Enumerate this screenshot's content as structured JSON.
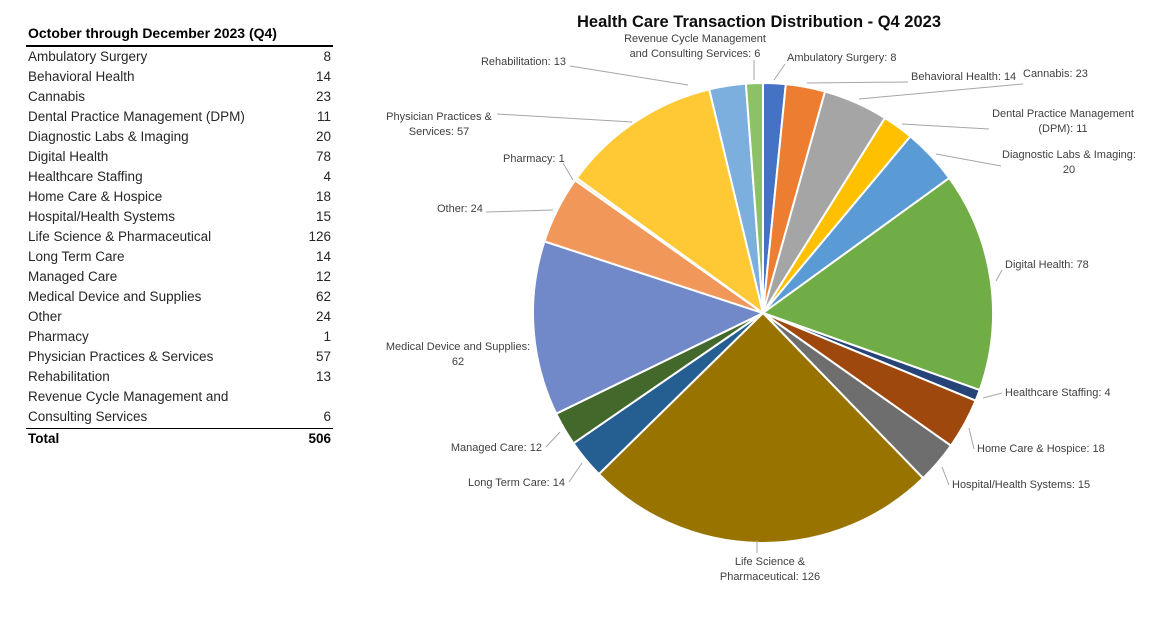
{
  "table": {
    "header": "October through December 2023 (Q4)",
    "rows": [
      {
        "label": "Ambulatory Surgery",
        "value": 8
      },
      {
        "label": "Behavioral Health",
        "value": 14
      },
      {
        "label": "Cannabis",
        "value": 23
      },
      {
        "label": "Dental Practice Management (DPM)",
        "value": 11
      },
      {
        "label": "Diagnostic Labs & Imaging",
        "value": 20
      },
      {
        "label": "Digital Health",
        "value": 78
      },
      {
        "label": "Healthcare Staffing",
        "value": 4
      },
      {
        "label": "Home Care & Hospice",
        "value": 18
      },
      {
        "label": "Hospital/Health Systems",
        "value": 15
      },
      {
        "label": "Life Science & Pharmaceutical",
        "value": 126
      },
      {
        "label": "Long Term Care",
        "value": 14
      },
      {
        "label": "Managed Care",
        "value": 12
      },
      {
        "label": "Medical Device and Supplies",
        "value": 62
      },
      {
        "label": "Other",
        "value": 24
      },
      {
        "label": "Pharmacy",
        "value": 1
      },
      {
        "label": "Physician Practices & Services",
        "value": 57
      },
      {
        "label": "Rehabilitation",
        "value": 13
      },
      {
        "label": "Revenue Cycle Management and Consulting Services",
        "value": 6
      }
    ],
    "total_label": "Total",
    "total_value": 506
  },
  "chart_data": {
    "type": "pie",
    "title": "Health Care Transaction Distribution - Q4 2023",
    "total": 506,
    "start_angle_deg": 0,
    "direction": "clockwise-from-12-oclock",
    "legend_position": "outside-data-labels-with-leader-lines",
    "slices": [
      {
        "category": "Ambulatory Surgery",
        "value": 8,
        "color": "#4472C4",
        "label_lines": [
          "Ambulatory Surgery: 8"
        ]
      },
      {
        "category": "Behavioral Health",
        "value": 14,
        "color": "#ED7D31",
        "label_lines": [
          "Behavioral Health: 14"
        ]
      },
      {
        "category": "Cannabis",
        "value": 23,
        "color": "#A5A5A5",
        "label_lines": [
          "Cannabis: 23"
        ]
      },
      {
        "category": "Dental Practice Management (DPM)",
        "value": 11,
        "color": "#FFC000",
        "label_lines": [
          "Dental Practice Management",
          "(DPM): 11"
        ]
      },
      {
        "category": "Diagnostic Labs & Imaging",
        "value": 20,
        "color": "#5B9BD5",
        "label_lines": [
          "Diagnostic Labs & Imaging:",
          "20"
        ]
      },
      {
        "category": "Digital Health",
        "value": 78,
        "color": "#70AD47",
        "label_lines": [
          "Digital Health: 78"
        ]
      },
      {
        "category": "Healthcare Staffing",
        "value": 4,
        "color": "#264478",
        "label_lines": [
          "Healthcare Staffing: 4"
        ]
      },
      {
        "category": "Home Care & Hospice",
        "value": 18,
        "color": "#9E480E",
        "label_lines": [
          "Home Care & Hospice: 18"
        ]
      },
      {
        "category": "Hospital/Health Systems",
        "value": 15,
        "color": "#6E6E6E",
        "label_lines": [
          "Hospital/Health Systems: 15"
        ]
      },
      {
        "category": "Life Science & Pharmaceutical",
        "value": 126,
        "color": "#997300",
        "label_lines": [
          "Life Science &",
          "Pharmaceutical: 126"
        ]
      },
      {
        "category": "Long Term Care",
        "value": 14,
        "color": "#255E91",
        "label_lines": [
          "Long Term Care: 14"
        ]
      },
      {
        "category": "Managed Care",
        "value": 12,
        "color": "#43682B",
        "label_lines": [
          "Managed Care: 12"
        ]
      },
      {
        "category": "Medical Device and Supplies",
        "value": 62,
        "color": "#7189C8",
        "label_lines": [
          "Medical Device and Supplies:",
          "62"
        ]
      },
      {
        "category": "Other",
        "value": 24,
        "color": "#F1975A",
        "label_lines": [
          "Other: 24"
        ]
      },
      {
        "category": "Pharmacy",
        "value": 1,
        "color": "#EDE0B8",
        "label_lines": [
          "Pharmacy: 1"
        ]
      },
      {
        "category": "Physician Practices & Services",
        "value": 57,
        "color": "#FFC936",
        "label_lines": [
          "Physician Practices &",
          "Services: 57"
        ]
      },
      {
        "category": "Rehabilitation",
        "value": 13,
        "color": "#7CAFDD",
        "label_lines": [
          "Rehabilitation: 13"
        ]
      },
      {
        "category": "Revenue Cycle Management and Consulting Services",
        "value": 6,
        "color": "#8CC168",
        "label_lines": [
          "Revenue Cycle Management",
          "and Consulting Services: 6"
        ]
      }
    ]
  }
}
